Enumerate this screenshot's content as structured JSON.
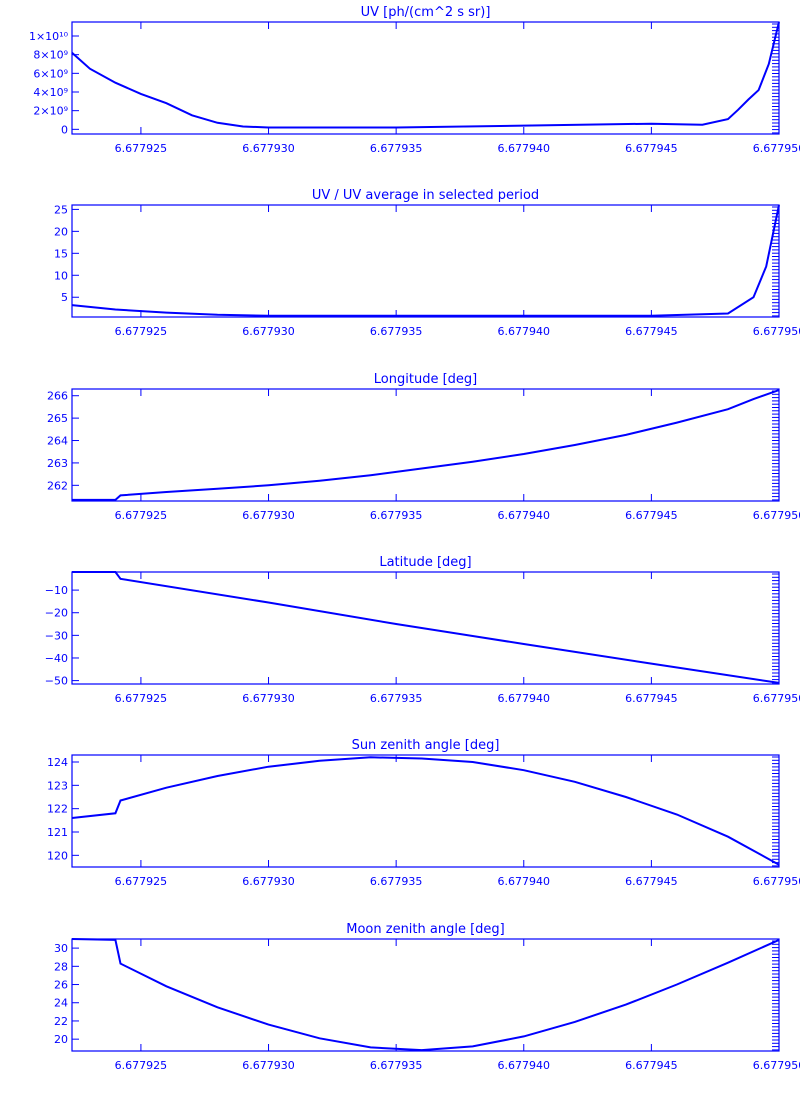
{
  "chart_data": [
    {
      "type": "line",
      "title": "UV [ph/(cm^2 s sr)]",
      "color": "#0000ff",
      "xlim": [
        6.6779223,
        6.67795
      ],
      "ylim": [
        -500000000.0,
        11500000000.0
      ],
      "yticks": [
        0,
        2000000000.0,
        4000000000.0,
        6000000000.0,
        8000000000.0,
        10000000000.0
      ],
      "yticklabels": [
        "0",
        "2×10⁹",
        "4×10⁹",
        "6×10⁹",
        "8×10⁹",
        "1×10¹⁰"
      ],
      "xticks": [
        6.677925,
        6.67793,
        6.677935,
        6.67794,
        6.677945,
        6.67795
      ],
      "xticklabels": [
        "6.677925",
        "6.677930",
        "6.677935",
        "6.677940",
        "6.677945",
        "6.677950"
      ],
      "x": [
        6.6779223,
        6.677923,
        6.677924,
        6.677925,
        6.677926,
        6.677927,
        6.677928,
        6.677929,
        6.67793,
        6.677935,
        6.67794,
        6.677945,
        6.677947,
        6.677948,
        6.6779484,
        6.6779488,
        6.6779492,
        6.6779496,
        6.67795
      ],
      "y": [
        8200000000.0,
        6500000000.0,
        5000000000.0,
        3800000000.0,
        2800000000.0,
        1500000000.0,
        700000000.0,
        300000000.0,
        200000000.0,
        200000000.0,
        400000000.0,
        600000000.0,
        500000000.0,
        1100000000.0,
        2100000000.0,
        3200000000.0,
        4200000000.0,
        7000000000.0,
        11500000000.0
      ]
    },
    {
      "type": "line",
      "title": "UV / UV average in selected period",
      "color": "#0000ff",
      "xlim": [
        6.6779223,
        6.67795
      ],
      "ylim": [
        0.5,
        26
      ],
      "yticks": [
        5,
        10,
        15,
        20,
        25
      ],
      "yticklabels": [
        "5",
        "10",
        "15",
        "20",
        "25"
      ],
      "xticks": [
        6.677925,
        6.67793,
        6.677935,
        6.67794,
        6.677945,
        6.67795
      ],
      "xticklabels": [
        "6.677925",
        "6.677930",
        "6.677935",
        "6.677940",
        "6.677945",
        "6.677950"
      ],
      "x": [
        6.6779223,
        6.677924,
        6.677926,
        6.677928,
        6.67793,
        6.677935,
        6.67794,
        6.677945,
        6.677948,
        6.677949,
        6.6779495,
        6.67795
      ],
      "y": [
        3.2,
        2.2,
        1.5,
        1,
        0.8,
        0.8,
        0.8,
        0.8,
        1.3,
        5,
        12,
        26
      ]
    },
    {
      "type": "line",
      "title": "Longitude [deg]",
      "color": "#0000ff",
      "xlim": [
        6.6779223,
        6.67795
      ],
      "ylim": [
        261.3,
        266.3
      ],
      "yticks": [
        262,
        263,
        264,
        265,
        266
      ],
      "yticklabels": [
        "262",
        "263",
        "264",
        "265",
        "266"
      ],
      "xticks": [
        6.677925,
        6.67793,
        6.677935,
        6.67794,
        6.677945,
        6.67795
      ],
      "xticklabels": [
        "6.677925",
        "6.677930",
        "6.677935",
        "6.677940",
        "6.677945",
        "6.677950"
      ],
      "x": [
        6.6779223,
        6.677924,
        6.6779242,
        6.677926,
        6.677928,
        6.67793,
        6.677932,
        6.677934,
        6.677936,
        6.677938,
        6.67794,
        6.677942,
        6.677944,
        6.677946,
        6.677948,
        6.677949,
        6.67795
      ],
      "y": [
        261.35,
        261.35,
        261.55,
        261.7,
        261.85,
        262.0,
        262.2,
        262.45,
        262.75,
        263.05,
        263.4,
        263.8,
        264.25,
        264.8,
        265.4,
        265.85,
        266.25
      ]
    },
    {
      "type": "line",
      "title": "Latitude [deg]",
      "color": "#0000ff",
      "xlim": [
        6.6779223,
        6.67795
      ],
      "ylim": [
        -51.5,
        -2
      ],
      "yticks": [
        -10,
        -20,
        -30,
        -40,
        -50
      ],
      "yticklabels": [
        "−10",
        "−20",
        "−30",
        "−40",
        "−50"
      ],
      "xticks": [
        6.677925,
        6.67793,
        6.677935,
        6.67794,
        6.677945,
        6.67795
      ],
      "xticklabels": [
        "6.677925",
        "6.677930",
        "6.677935",
        "6.677940",
        "6.677945",
        "6.677950"
      ],
      "x": [
        6.6779223,
        6.677924,
        6.6779242,
        6.67793,
        6.677935,
        6.67794,
        6.677945,
        6.67795
      ],
      "y": [
        -2.0,
        -2.0,
        -5.0,
        -15.5,
        -25.0,
        -33.8,
        -42.5,
        -51.0
      ]
    },
    {
      "type": "line",
      "title": "Sun zenith angle [deg]",
      "color": "#0000ff",
      "xlim": [
        6.6779223,
        6.67795
      ],
      "ylim": [
        119.5,
        124.3
      ],
      "yticks": [
        120,
        121,
        122,
        123,
        124
      ],
      "yticklabels": [
        "120",
        "121",
        "122",
        "123",
        "124"
      ],
      "xticks": [
        6.677925,
        6.67793,
        6.677935,
        6.67794,
        6.677945,
        6.67795
      ],
      "xticklabels": [
        "6.677925",
        "6.677930",
        "6.677935",
        "6.677940",
        "6.677945",
        "6.677950"
      ],
      "x": [
        6.6779223,
        6.677924,
        6.6779242,
        6.677926,
        6.677928,
        6.67793,
        6.677932,
        6.677934,
        6.677936,
        6.677938,
        6.67794,
        6.677942,
        6.677944,
        6.677946,
        6.677948,
        6.67795
      ],
      "y": [
        121.6,
        121.8,
        122.35,
        122.9,
        123.4,
        123.8,
        124.05,
        124.2,
        124.15,
        124.0,
        123.65,
        123.15,
        122.5,
        121.75,
        120.8,
        119.6
      ]
    },
    {
      "type": "line",
      "title": "Moon zenith angle [deg]",
      "color": "#0000ff",
      "xlim": [
        6.6779223,
        6.67795
      ],
      "ylim": [
        18.7,
        31
      ],
      "yticks": [
        20,
        22,
        24,
        26,
        28,
        30
      ],
      "yticklabels": [
        "20",
        "22",
        "24",
        "26",
        "28",
        "30"
      ],
      "xticks": [
        6.677925,
        6.67793,
        6.677935,
        6.67794,
        6.677945,
        6.67795
      ],
      "xticklabels": [
        "6.677925",
        "6.677930",
        "6.677935",
        "6.677940",
        "6.677945",
        "6.677950"
      ],
      "x": [
        6.6779223,
        6.677924,
        6.6779242,
        6.677926,
        6.677928,
        6.67793,
        6.677932,
        6.677934,
        6.677936,
        6.677938,
        6.67794,
        6.677942,
        6.677944,
        6.677946,
        6.677948,
        6.67795
      ],
      "y": [
        31.0,
        30.9,
        28.3,
        25.8,
        23.5,
        21.6,
        20.1,
        19.1,
        18.8,
        19.2,
        20.3,
        21.9,
        23.8,
        26.0,
        28.4,
        30.9
      ]
    }
  ]
}
